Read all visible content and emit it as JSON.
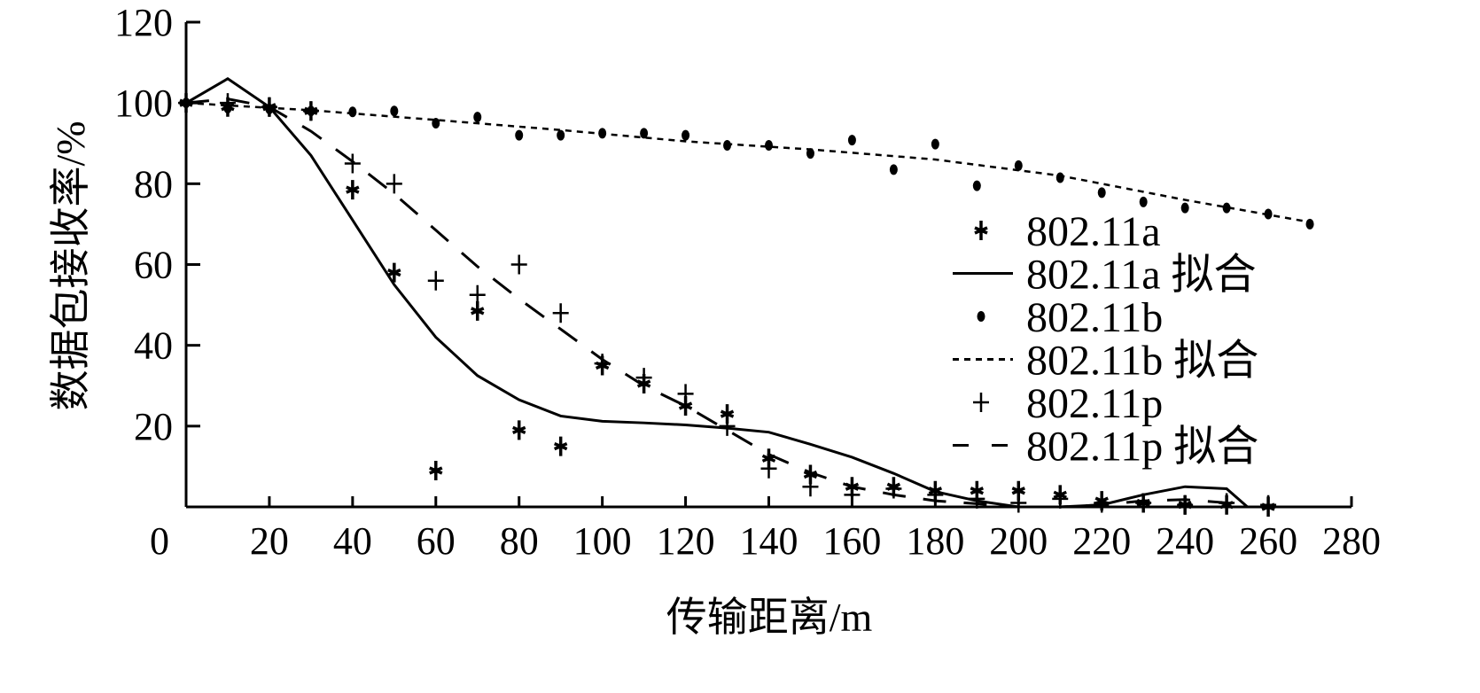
{
  "chart_data": {
    "type": "scatter",
    "title": "",
    "xlabel": "传输距离/m",
    "ylabel": "数据包接收率/%",
    "xlim": [
      0,
      280
    ],
    "ylim": [
      0,
      120
    ],
    "xticks": [
      0,
      20,
      40,
      60,
      80,
      100,
      120,
      140,
      160,
      180,
      200,
      220,
      240,
      260,
      280
    ],
    "yticks": [
      20,
      40,
      60,
      80,
      100,
      120
    ],
    "grid": false,
    "legend_position": "right",
    "series": [
      {
        "name": "802.11a",
        "kind": "points",
        "marker": "star-cross",
        "x": [
          0,
          10,
          20,
          30,
          40,
          50,
          60,
          70,
          80,
          90,
          100,
          110,
          120,
          130,
          140,
          150,
          160,
          170,
          180,
          190,
          200,
          210,
          220,
          230,
          240,
          250,
          260
        ],
        "y": [
          100,
          99,
          99,
          98,
          78.5,
          58,
          9,
          48.5,
          19,
          15,
          35,
          30.5,
          25,
          23,
          12,
          8,
          5,
          5,
          4,
          4,
          4,
          3,
          1.5,
          1,
          0.5,
          0.5,
          0
        ]
      },
      {
        "name": "802.11a 拟合",
        "kind": "line",
        "dash": "solid",
        "x": [
          0,
          10,
          20,
          30,
          40,
          50,
          60,
          70,
          80,
          90,
          100,
          110,
          120,
          130,
          140,
          150,
          160,
          170,
          180,
          190,
          200,
          210,
          220,
          230,
          240,
          250,
          255
        ],
        "y": [
          100,
          106,
          99,
          87,
          71,
          55,
          42,
          32.5,
          26.5,
          22.5,
          21.2,
          20.8,
          20.3,
          19.5,
          18.5,
          15.5,
          12.3,
          8.3,
          3.8,
          1.5,
          0,
          0,
          0.5,
          3,
          5,
          4.5,
          0
        ]
      },
      {
        "name": "802.11b",
        "kind": "points",
        "marker": "dot",
        "x": [
          0,
          10,
          20,
          30,
          40,
          50,
          60,
          70,
          80,
          90,
          100,
          110,
          120,
          130,
          140,
          150,
          160,
          170,
          180,
          190,
          200,
          210,
          220,
          230,
          240,
          250,
          260,
          270
        ],
        "y": [
          100,
          98.7,
          98.5,
          98,
          97.8,
          98,
          95,
          96.5,
          92,
          92,
          92.5,
          92.5,
          92,
          89.5,
          89.5,
          87.5,
          90.8,
          83.5,
          89.8,
          79.5,
          84.5,
          81.5,
          77.8,
          75.5,
          74,
          74,
          72.5,
          70
        ]
      },
      {
        "name": "802.11b 拟合",
        "kind": "line",
        "dash": "dotted",
        "x": [
          0,
          30,
          60,
          90,
          120,
          150,
          180,
          210,
          240,
          270
        ],
        "y": [
          100,
          98.2,
          95.8,
          93.3,
          90.5,
          88.5,
          86,
          82,
          76,
          70.5
        ]
      },
      {
        "name": "802.11p",
        "kind": "points",
        "marker": "plus",
        "x": [
          0,
          10,
          20,
          30,
          40,
          50,
          60,
          70,
          80,
          90,
          100,
          110,
          120,
          130,
          140,
          150,
          160,
          170,
          180,
          190,
          200,
          210,
          220,
          230,
          240,
          250,
          260
        ],
        "y": [
          100,
          100,
          99,
          98,
          85,
          80,
          56,
          52.5,
          60,
          48,
          35.5,
          32,
          28,
          20,
          9.5,
          5,
          3,
          4.5,
          3,
          2,
          1,
          2,
          1,
          1,
          0.5,
          1,
          0.5
        ]
      },
      {
        "name": "802.11p 拟合",
        "kind": "line",
        "dash": "dashed",
        "x": [
          0,
          10,
          20,
          30,
          40,
          50,
          60,
          70,
          80,
          90,
          100,
          110,
          120,
          130,
          140,
          150,
          160,
          170,
          180,
          190,
          200,
          210,
          220,
          230,
          240,
          250,
          255
        ],
        "y": [
          100,
          101,
          99,
          93,
          85.5,
          77.5,
          68.5,
          59.5,
          51.5,
          44,
          36.5,
          30,
          25,
          19,
          13,
          8.5,
          5,
          3,
          1.5,
          0.8,
          0,
          0,
          0.5,
          1.5,
          1.8,
          1,
          0
        ]
      }
    ]
  }
}
